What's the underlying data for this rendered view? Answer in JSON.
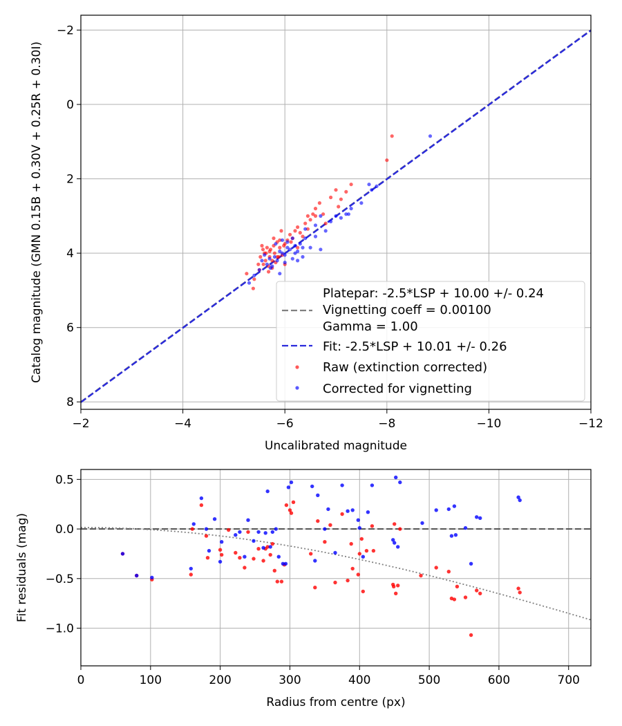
{
  "chart_data": [
    {
      "type": "scatter",
      "xlabel": "Uncalibrated magnitude",
      "ylabel": "Catalog magnitude (GMN 0.15B + 0.30V + 0.25R + 0.30I)",
      "xlim": [
        -2,
        -12
      ],
      "ylim": [
        8.2,
        -2.4
      ],
      "xticks": [
        -2,
        -4,
        -6,
        -8,
        -10,
        -12
      ],
      "yticks": [
        -2,
        0,
        2,
        4,
        6,
        8
      ],
      "xtick_labels": [
        "−2",
        "−4",
        "−6",
        "−8",
        "−10",
        "−12"
      ],
      "ytick_labels": [
        "−2",
        "0",
        "2",
        "4",
        "6",
        "8"
      ],
      "grid": true,
      "legend_position": "bottom-right",
      "legend": [
        {
          "label": "Platepar: -2.5*LSP + 10.00 +/- 0.24",
          "style": "dashed",
          "color": "#808080"
        },
        {
          "label": "Vignetting coeff = 0.00100"
        },
        {
          "label": "Gamma = 1.00"
        },
        {
          "label": "Fit: -2.5*LSP + 10.01 +/- 0.26",
          "style": "dashed",
          "color": "#2a2adc"
        },
        {
          "label": "Raw (extinction corrected)",
          "style": "marker",
          "color": "#ff0000"
        },
        {
          "label": "Corrected for vignetting",
          "style": "marker",
          "color": "#0000ff"
        }
      ],
      "lines": [
        {
          "name": "Platepar",
          "x": [
            -2,
            -12
          ],
          "y": [
            8.0,
            -2.0
          ],
          "color": "#808080",
          "dash": "dashed"
        },
        {
          "name": "Fit",
          "x": [
            -2,
            -12
          ],
          "y": [
            8.01,
            -1.99
          ],
          "color": "#2a2adc",
          "dash": "dashed"
        }
      ],
      "series": [
        {
          "name": "Raw (extinction corrected)",
          "color": "#ff0000",
          "x": [
            -5.25,
            -5.38,
            -5.48,
            -5.52,
            -5.55,
            -5.58,
            -5.6,
            -5.62,
            -5.65,
            -5.68,
            -5.7,
            -5.72,
            -5.75,
            -5.78,
            -5.8,
            -5.82,
            -5.85,
            -5.88,
            -5.9,
            -5.93,
            -5.95,
            -5.98,
            -6.0,
            -6.05,
            -6.1,
            -6.15,
            -6.2,
            -6.25,
            -6.3,
            -6.35,
            -6.4,
            -6.45,
            -6.5,
            -6.55,
            -6.6,
            -6.68,
            -6.75,
            -6.8,
            -6.9,
            -7.0,
            -7.1,
            -7.2,
            -7.3,
            -5.4,
            -5.5,
            -5.7,
            -5.9,
            -5.75,
            -5.63,
            -5.57,
            -6.0,
            -5.85,
            -6.12,
            -6.25,
            -6.45,
            -5.68,
            -5.78,
            -6.6,
            -7.05,
            -8.0,
            -8.1
          ],
          "y": [
            4.55,
            4.95,
            4.3,
            4.1,
            3.8,
            4.3,
            4.0,
            4.2,
            3.85,
            4.35,
            4.1,
            3.9,
            4.4,
            3.8,
            4.0,
            4.25,
            3.7,
            4.1,
            3.85,
            3.4,
            4.05,
            3.8,
            3.75,
            3.65,
            3.5,
            3.6,
            3.4,
            3.3,
            3.45,
            3.55,
            3.2,
            3.0,
            3.1,
            2.95,
            2.8,
            2.65,
            2.95,
            3.2,
            2.5,
            2.3,
            2.55,
            2.35,
            2.15,
            4.7,
            4.45,
            3.95,
            3.65,
            4.2,
            4.0,
            3.9,
            4.3,
            4.1,
            3.7,
            3.85,
            3.35,
            4.5,
            3.6,
            3.0,
            2.75,
            1.5,
            0.85
          ]
        },
        {
          "name": "Corrected for vignetting",
          "color": "#0000ff",
          "x": [
            -5.3,
            -5.4,
            -5.5,
            -5.55,
            -5.6,
            -5.65,
            -5.7,
            -5.75,
            -5.8,
            -5.85,
            -5.9,
            -5.95,
            -6.0,
            -6.05,
            -6.1,
            -6.15,
            -6.2,
            -6.25,
            -6.3,
            -6.35,
            -6.4,
            -6.5,
            -6.6,
            -6.7,
            -6.8,
            -6.9,
            -7.0,
            -7.1,
            -7.2,
            -7.3,
            -7.5,
            -7.7,
            -7.8,
            -8.85,
            -5.9,
            -6.0,
            -6.2,
            -6.05,
            -5.95,
            -6.15,
            -6.25,
            -6.35,
            -6.6,
            -5.72,
            -5.82,
            -6.4,
            -6.7,
            -7.25,
            -7.65
          ],
          "y": [
            4.8,
            4.6,
            4.45,
            4.2,
            4.05,
            4.3,
            4.15,
            4.35,
            4.1,
            4.2,
            3.95,
            4.0,
            4.05,
            3.85,
            3.9,
            4.15,
            3.8,
            4.2,
            3.75,
            3.85,
            3.6,
            3.85,
            3.55,
            3.9,
            3.4,
            3.15,
            3.0,
            3.05,
            2.95,
            2.8,
            2.65,
            2.3,
            2.2,
            0.85,
            4.55,
            4.25,
            4.0,
            3.7,
            3.65,
            3.6,
            3.95,
            4.1,
            3.25,
            4.4,
            3.75,
            3.35,
            3.0,
            2.95,
            2.15
          ]
        }
      ]
    },
    {
      "type": "scatter",
      "xlabel": "Radius from centre (px)",
      "ylabel": "Fit residuals (mag)",
      "xlim": [
        0,
        732
      ],
      "ylim": [
        -1.38,
        0.6
      ],
      "xticks": [
        0,
        100,
        200,
        300,
        400,
        500,
        600,
        700
      ],
      "yticks": [
        0.5,
        0.0,
        -0.5,
        -1.0
      ],
      "xtick_labels": [
        "0",
        "100",
        "200",
        "300",
        "400",
        "500",
        "600",
        "700"
      ],
      "ytick_labels": [
        "0.5",
        "0.0",
        "−0.5",
        "−1.0"
      ],
      "grid": true,
      "lines": [
        {
          "name": "zero",
          "x": [
            0,
            732
          ],
          "y": [
            0,
            0
          ],
          "color": "#555555",
          "dash": "dashed"
        },
        {
          "name": "vignetting model",
          "curve": "vignetting",
          "coeff": 0.001,
          "offset": 0.015,
          "color": "#808080",
          "dash": "dotted"
        }
      ],
      "series": [
        {
          "name": "Raw (extinction corrected)",
          "color": "#ff0000",
          "x": [
            60,
            80,
            102,
            158,
            160,
            173,
            180,
            182,
            200,
            202,
            212,
            222,
            228,
            235,
            240,
            248,
            255,
            262,
            265,
            268,
            272,
            275,
            278,
            282,
            288,
            292,
            295,
            300,
            302,
            305,
            330,
            336,
            340,
            350,
            358,
            365,
            375,
            383,
            388,
            390,
            398,
            400,
            403,
            405,
            410,
            418,
            420,
            448,
            449,
            450,
            452,
            455,
            458,
            488,
            510,
            528,
            532,
            536,
            540,
            552,
            560,
            568,
            573,
            628,
            630
          ],
          "y": [
            -0.25,
            -0.47,
            -0.51,
            -0.46,
            0.0,
            0.24,
            -0.07,
            -0.29,
            -0.21,
            -0.26,
            -0.01,
            -0.24,
            -0.29,
            -0.39,
            -0.03,
            -0.3,
            -0.2,
            -0.32,
            -0.2,
            -0.18,
            -0.26,
            -0.15,
            -0.42,
            -0.53,
            -0.53,
            -0.36,
            0.24,
            0.19,
            0.16,
            0.27,
            -0.25,
            -0.59,
            0.08,
            -0.13,
            0.04,
            -0.54,
            0.15,
            -0.52,
            -0.15,
            -0.4,
            -0.46,
            -0.25,
            -0.1,
            -0.63,
            -0.22,
            0.03,
            -0.22,
            -0.56,
            -0.58,
            0.05,
            -0.65,
            -0.57,
            0.0,
            -0.47,
            -0.39,
            -0.43,
            -0.7,
            -0.71,
            -0.58,
            -0.69,
            -1.07,
            -0.62,
            -0.65,
            -0.6,
            -0.64
          ]
        },
        {
          "name": "Corrected for vignetting",
          "color": "#0000ff",
          "x": [
            60,
            80,
            102,
            158,
            162,
            173,
            180,
            184,
            192,
            200,
            202,
            222,
            228,
            235,
            240,
            248,
            255,
            262,
            265,
            268,
            272,
            275,
            280,
            284,
            290,
            294,
            298,
            302,
            332,
            336,
            340,
            350,
            355,
            365,
            375,
            383,
            390,
            398,
            400,
            405,
            412,
            418,
            448,
            450,
            452,
            455,
            458,
            490,
            510,
            528,
            532,
            536,
            538,
            552,
            560,
            568,
            573,
            628,
            630
          ],
          "y": [
            -0.25,
            -0.47,
            -0.49,
            -0.4,
            0.05,
            0.31,
            0.0,
            -0.22,
            0.1,
            -0.33,
            -0.13,
            -0.06,
            -0.03,
            -0.28,
            0.09,
            -0.12,
            -0.03,
            -0.19,
            -0.04,
            0.38,
            -0.18,
            -0.03,
            0.0,
            -0.28,
            -0.35,
            -0.35,
            0.42,
            0.47,
            0.43,
            -0.32,
            0.34,
            0.0,
            0.2,
            -0.24,
            0.44,
            0.18,
            0.19,
            0.09,
            0.01,
            -0.28,
            0.17,
            0.44,
            -0.11,
            -0.14,
            0.52,
            -0.18,
            0.47,
            0.06,
            0.19,
            0.2,
            -0.07,
            0.23,
            -0.06,
            0.01,
            -0.35,
            0.12,
            0.11,
            0.32,
            0.29
          ]
        }
      ]
    }
  ]
}
